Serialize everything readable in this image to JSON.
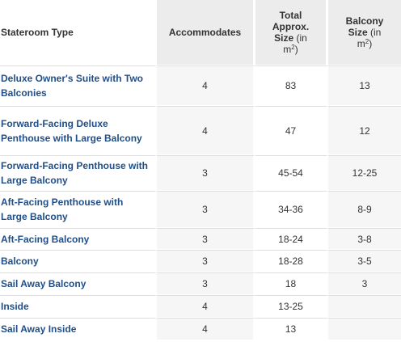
{
  "table": {
    "headers": {
      "stateroom_type": "Stateroom Type",
      "accommodates": "Accommodates",
      "total_size": {
        "line1": "Total",
        "line2": "Approx.",
        "line3_bold": "Size",
        "line3_rest": " (in",
        "line4": "m",
        "sup": "2",
        "close": ")"
      },
      "balcony_size": {
        "line1": "Balcony",
        "line2_bold": "Size",
        "line2_rest": " (in",
        "line3": "m",
        "sup": "2",
        "close": ")"
      }
    },
    "rows": [
      {
        "type": "Deluxe Owner's Suite with Two Balconies",
        "accommodates": "4",
        "total": "83",
        "balcony": "13"
      },
      {
        "type": "Forward-Facing Deluxe Penthouse with Large Balcony",
        "accommodates": "4",
        "total": "47",
        "balcony": "12"
      },
      {
        "type": "Forward-Facing Penthouse with Large Balcony",
        "accommodates": "3",
        "total": "45-54",
        "balcony": "12-25"
      },
      {
        "type": "Aft-Facing Penthouse with Large Balcony",
        "accommodates": "3",
        "total": "34-36",
        "balcony": "8-9"
      },
      {
        "type": "Aft-Facing Balcony",
        "accommodates": "3",
        "total": "18-24",
        "balcony": "3-8"
      },
      {
        "type": "Balcony",
        "accommodates": "3",
        "total": "18-28",
        "balcony": "3-5"
      },
      {
        "type": "Sail Away Balcony",
        "accommodates": "3",
        "total": "18",
        "balcony": "3"
      },
      {
        "type": "Inside",
        "accommodates": "4",
        "total": "13-25",
        "balcony": ""
      },
      {
        "type": "Sail Away Inside",
        "accommodates": "4",
        "total": "13",
        "balcony": ""
      }
    ]
  }
}
